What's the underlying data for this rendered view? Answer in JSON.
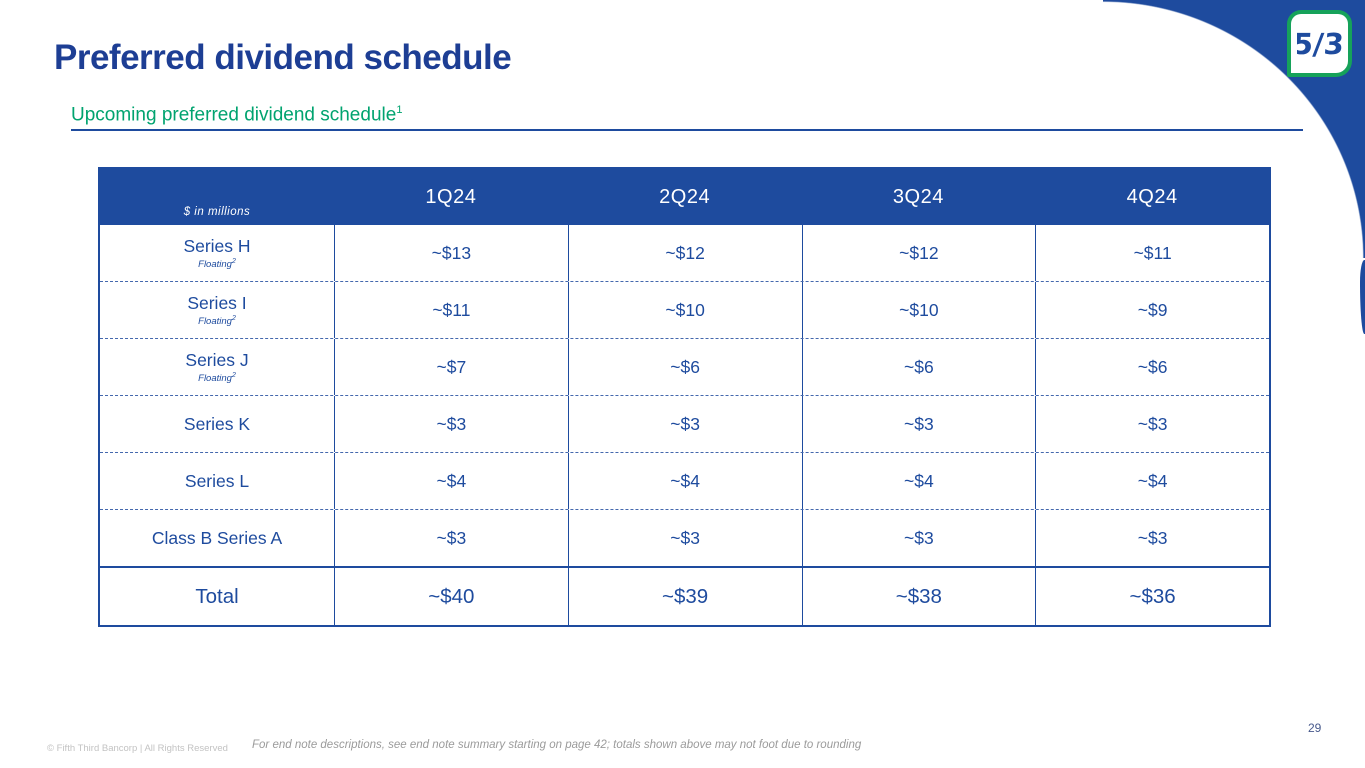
{
  "slide": {
    "title": "Preferred dividend schedule",
    "subtitle": {
      "text": "Upcoming preferred dividend schedule",
      "superscript": "1"
    },
    "page_number": "29",
    "footer": {
      "copyright": "© Fifth Third Bancorp | All Rights Reserved",
      "endnote": "For end note descriptions, see end note summary starting on page 42; totals shown above may not foot due to rounding"
    },
    "logo": {
      "text": "5/3"
    }
  },
  "colors": {
    "brand_blue": "#1e4b9e",
    "title_blue": "#1d3e94",
    "subtitle_green": "#00a36f",
    "logo_green": "#16a25a",
    "dashed_line": "#4468ad",
    "footer_gray": "#9b9b9b"
  },
  "table": {
    "unit_label": "$ in millions",
    "columns": [
      "1Q24",
      "2Q24",
      "3Q24",
      "4Q24"
    ],
    "rows": [
      {
        "label": "Series H",
        "note": "Floating",
        "note_sup": "2",
        "values": [
          "~$13",
          "~$12",
          "~$12",
          "~$11"
        ]
      },
      {
        "label": "Series I",
        "note": "Floating",
        "note_sup": "2",
        "values": [
          "~$11",
          "~$10",
          "~$10",
          "~$9"
        ]
      },
      {
        "label": "Series J",
        "note": "Floating",
        "note_sup": "2",
        "values": [
          "~$7",
          "~$6",
          "~$6",
          "~$6"
        ]
      },
      {
        "label": "Series K",
        "values": [
          "~$3",
          "~$3",
          "~$3",
          "~$3"
        ]
      },
      {
        "label": "Series L",
        "values": [
          "~$4",
          "~$4",
          "~$4",
          "~$4"
        ]
      },
      {
        "label": "Class B Series A",
        "values": [
          "~$3",
          "~$3",
          "~$3",
          "~$3"
        ]
      }
    ],
    "total_row": {
      "label": "Total",
      "values": [
        "~$40",
        "~$39",
        "~$38",
        "~$36"
      ]
    }
  }
}
